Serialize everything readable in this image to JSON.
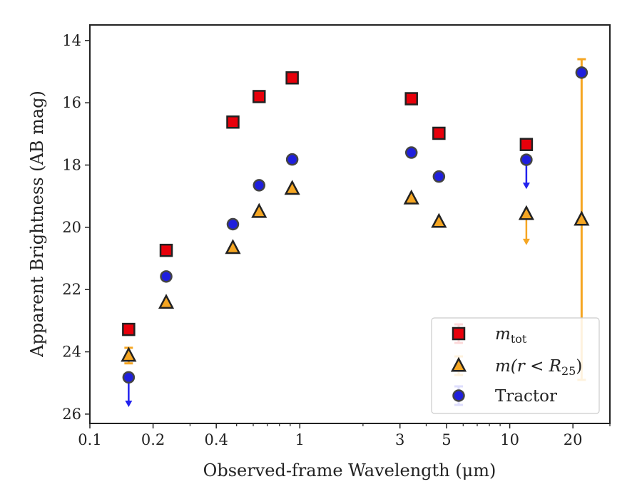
{
  "chart_data": {
    "type": "scatter",
    "title": "",
    "xlabel": "Observed-frame Wavelength (μm)",
    "ylabel": "Apparent Brightness (AB mag)",
    "xscale": "log",
    "xlim": [
      0.1,
      30
    ],
    "ylim": [
      26.3,
      13.5
    ],
    "y_inverted": true,
    "x_ticks": [
      {
        "value": 0.1,
        "label": "0.1"
      },
      {
        "value": 0.2,
        "label": "0.2"
      },
      {
        "value": 0.4,
        "label": "0.4"
      },
      {
        "value": 1,
        "label": "1"
      },
      {
        "value": 3,
        "label": "3"
      },
      {
        "value": 5,
        "label": "5"
      },
      {
        "value": 10,
        "label": "10"
      },
      {
        "value": 20,
        "label": "20"
      }
    ],
    "y_ticks": [
      {
        "value": 14,
        "label": "14"
      },
      {
        "value": 16,
        "label": "16"
      },
      {
        "value": 18,
        "label": "18"
      },
      {
        "value": 20,
        "label": "20"
      },
      {
        "value": 22,
        "label": "22"
      },
      {
        "value": 24,
        "label": "24"
      },
      {
        "value": 26,
        "label": "26"
      }
    ],
    "grid": false,
    "legend": {
      "position": "bottom-right",
      "entries": [
        {
          "series": "mtot",
          "label_main": "m",
          "label_sub": "tot"
        },
        {
          "series": "mr25",
          "label_main": "m(r < R",
          "label_sub": "25",
          "label_end": ")"
        },
        {
          "series": "tractor",
          "label_main": "Tractor"
        }
      ]
    },
    "series": [
      {
        "name": "m_tot",
        "marker": "square",
        "color": "#e8000b",
        "edge_color": "#222222",
        "points": [
          {
            "x": 0.153,
            "y": 23.28
          },
          {
            "x": 0.231,
            "y": 20.74
          },
          {
            "x": 0.48,
            "y": 16.62
          },
          {
            "x": 0.64,
            "y": 15.8
          },
          {
            "x": 0.92,
            "y": 15.2
          },
          {
            "x": 3.4,
            "y": 15.87
          },
          {
            "x": 4.6,
            "y": 16.98
          },
          {
            "x": 12.0,
            "y": 17.34
          }
        ]
      },
      {
        "name": "m(r < R25)",
        "marker": "triangle",
        "color": "#f5a623",
        "edge_color": "#222222",
        "points": [
          {
            "x": 0.153,
            "y": 24.12,
            "yerr": 0.25
          },
          {
            "x": 0.231,
            "y": 22.42
          },
          {
            "x": 0.48,
            "y": 20.66
          },
          {
            "x": 0.64,
            "y": 19.5
          },
          {
            "x": 0.92,
            "y": 18.76
          },
          {
            "x": 3.4,
            "y": 19.07
          },
          {
            "x": 4.6,
            "y": 19.82
          },
          {
            "x": 12.0,
            "y": 19.57,
            "upper_limit_to": 20.55
          },
          {
            "x": 22.0,
            "y": 19.75,
            "yerr_low": 5.15,
            "yerr_high": 5.15
          }
        ]
      },
      {
        "name": "Tractor",
        "marker": "circle",
        "color": "#1f1fdd",
        "edge_color": "#444444",
        "points": [
          {
            "x": 0.153,
            "y": 24.82,
            "upper_limit_to": 25.75
          },
          {
            "x": 0.231,
            "y": 21.58
          },
          {
            "x": 0.48,
            "y": 19.9
          },
          {
            "x": 0.64,
            "y": 18.65
          },
          {
            "x": 0.92,
            "y": 17.82
          },
          {
            "x": 3.4,
            "y": 17.6
          },
          {
            "x": 4.6,
            "y": 18.37
          },
          {
            "x": 12.0,
            "y": 17.83,
            "upper_limit_to": 18.75
          },
          {
            "x": 22.0,
            "y": 15.03
          }
        ]
      }
    ],
    "colors": {
      "axis": "#222222",
      "orange_errorbar": "#f5a623",
      "blue_arrow": "#2222ee"
    }
  }
}
